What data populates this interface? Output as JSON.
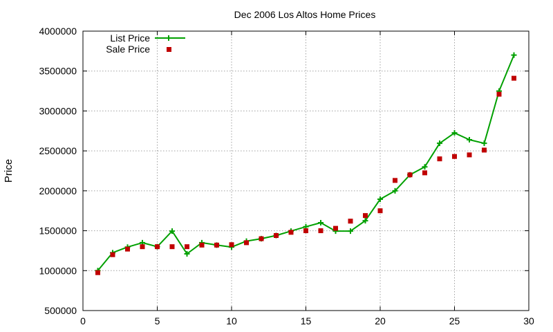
{
  "chart_data": {
    "type": "line",
    "title": "Dec 2006 Los Altos Home Prices",
    "xlabel": "",
    "ylabel": "Price",
    "xlim": [
      0,
      30
    ],
    "ylim": [
      500000,
      4000000
    ],
    "xticks": [
      0,
      5,
      10,
      15,
      20,
      25,
      30
    ],
    "yticks": [
      500000,
      1000000,
      1500000,
      2000000,
      2500000,
      3000000,
      3500000,
      4000000
    ],
    "grid": true,
    "legend_position": "top-left",
    "series": [
      {
        "name": "List Price",
        "style": "line-with-plus-markers",
        "color": "#00a000",
        "x": [
          1,
          2,
          3,
          4,
          5,
          6,
          7,
          8,
          9,
          10,
          11,
          12,
          13,
          14,
          15,
          16,
          17,
          18,
          19,
          20,
          21,
          22,
          23,
          24,
          25,
          26,
          27,
          28,
          29
        ],
        "values": [
          1000000,
          1225000,
          1295000,
          1350000,
          1300000,
          1495000,
          1210000,
          1350000,
          1320000,
          1295000,
          1370000,
          1400000,
          1440000,
          1495000,
          1550000,
          1600000,
          1495000,
          1495000,
          1625000,
          1895000,
          2000000,
          2200000,
          2300000,
          2595000,
          2725000,
          2640000,
          2595000,
          3250000,
          3700000
        ]
      },
      {
        "name": "Sale Price",
        "style": "square-markers",
        "color": "#c00000",
        "x": [
          1,
          2,
          3,
          4,
          5,
          6,
          7,
          8,
          9,
          10,
          11,
          12,
          13,
          14,
          15,
          16,
          17,
          18,
          19,
          20,
          21,
          22,
          23,
          24,
          25,
          26,
          27,
          28,
          29
        ],
        "values": [
          975000,
          1200000,
          1270000,
          1300000,
          1300000,
          1300000,
          1300000,
          1320000,
          1320000,
          1325000,
          1350000,
          1400000,
          1440000,
          1480000,
          1500000,
          1500000,
          1530000,
          1620000,
          1690000,
          1750000,
          2130000,
          2200000,
          2225000,
          2400000,
          2430000,
          2450000,
          2510000,
          3210000,
          3410000
        ]
      }
    ]
  }
}
